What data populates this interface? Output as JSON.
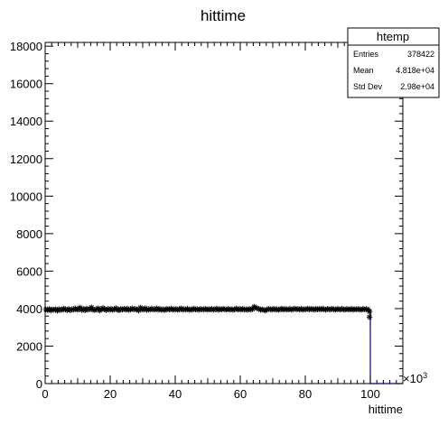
{
  "chart_data": {
    "type": "scatter",
    "title": "hittime",
    "xlabel": "hittime",
    "ylabel": "",
    "x_multiplier_label": "×10",
    "x_multiplier_exp": "3",
    "xlim": [
      0,
      110
    ],
    "ylim": [
      0,
      18200
    ],
    "x_ticks": [
      "0",
      "20",
      "40",
      "60",
      "80",
      "100"
    ],
    "x_tick_values": [
      0,
      20,
      40,
      60,
      80,
      100
    ],
    "y_ticks": [
      "0",
      "2000",
      "4000",
      "6000",
      "8000",
      "10000",
      "12000",
      "14000",
      "16000",
      "18000"
    ],
    "y_tick_values": [
      0,
      2000,
      4000,
      6000,
      8000,
      10000,
      12000,
      14000,
      16000,
      18000
    ],
    "grid": false,
    "marker": "star",
    "series_color": "#000000",
    "hist_line_color": "#000080",
    "last_bin": {
      "x": 100,
      "y": 3550
    },
    "values": [
      3950,
      3920,
      3980,
      3900,
      3950,
      3940,
      3960,
      3890,
      3970,
      3930,
      3940,
      4000,
      3950,
      3920,
      3980,
      3910,
      3960,
      3950,
      4010,
      3940,
      3960,
      4050,
      3930,
      3980,
      3910,
      4000,
      3950,
      3970,
      4060,
      3940,
      3920,
      3960,
      4010,
      3900,
      3950,
      4030,
      3960,
      3920,
      3980,
      3940,
      3990,
      3930,
      3960,
      4020,
      3940,
      3910,
      3980,
      3950,
      3990,
      3940,
      4000,
      3930,
      3950,
      4010,
      3960,
      3980,
      3940,
      3900,
      4050,
      3960,
      3950,
      4020,
      3930,
      3970,
      3940,
      4000,
      3960,
      3950,
      4010,
      3940,
      3990,
      3930,
      3960,
      3920,
      3980,
      3970,
      3950,
      4000,
      3940,
      3960,
      3980,
      3930,
      3960,
      4010,
      3940,
      3970,
      3950,
      3990,
      3930,
      3960,
      3940,
      4000,
      3950,
      3970,
      3930,
      3980,
      3960,
      3950,
      3990,
      3940,
      3970,
      3950,
      3980,
      3940,
      3960,
      4000,
      3930,
      3970,
      3950,
      3990,
      3960,
      3940,
      3980,
      3950,
      3970,
      3930,
      3960,
      4000,
      3950,
      3980,
      3940,
      3990,
      3950,
      3960,
      3930,
      3980,
      3950,
      3970,
      4100,
      4050,
      4010,
      3980,
      3940,
      3960,
      3920,
      3900,
      3950,
      3980,
      3960,
      3940,
      3990,
      3950,
      3970,
      3930,
      3960,
      4000,
      3940,
      3980,
      3960,
      3950,
      3990,
      3940,
      3970,
      4000,
      3960,
      3980,
      3950,
      3990,
      3940,
      3970,
      3960,
      4000,
      3950,
      3980,
      3970,
      3940,
      3990,
      3960,
      3980,
      3950,
      4000,
      3960,
      3940,
      3980,
      3970,
      3950,
      3990,
      3960,
      3940,
      3980,
      3970,
      3950,
      3990,
      3960,
      3940,
      3980,
      3960,
      3950,
      3990,
      3940,
      3970,
      3960,
      3980,
      3950,
      3940,
      3990,
      3960,
      3970,
      3950,
      3850
    ]
  },
  "stats_box": {
    "title": "htemp",
    "rows": [
      {
        "label": "Entries",
        "value": "378422"
      },
      {
        "label": "Mean",
        "value": "4.818e+04"
      },
      {
        "label": "Std Dev",
        "value": "2.98e+04"
      }
    ]
  }
}
